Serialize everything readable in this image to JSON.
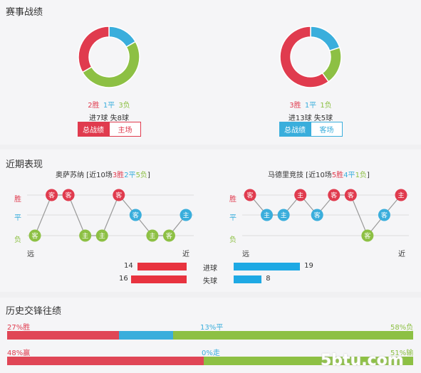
{
  "sections": {
    "record_title": "赛事战绩",
    "recent_title": "近期表现",
    "history_title": "历史交锋往绩"
  },
  "colors": {
    "win": "#e03b4e",
    "draw": "#3aaedc",
    "loss": "#8dc044"
  },
  "left_team": {
    "record": {
      "win": "2胜",
      "draw": "1平",
      "loss": "3负",
      "wins": 2,
      "draws": 1,
      "losses": 3
    },
    "goals": "进7球 失8球",
    "tabs": [
      "总战绩",
      "主场"
    ],
    "active_tab": 0
  },
  "right_team": {
    "record": {
      "win": "3胜",
      "draw": "1平",
      "loss": "1负",
      "wins": 3,
      "draws": 1,
      "losses": 1
    },
    "goals": "进13球 失5球",
    "tabs": [
      "总战绩",
      "客场"
    ],
    "active_tab": 0
  },
  "form_left": {
    "name": "奥萨苏纳",
    "prefix": " [近10场",
    "w": "3胜",
    "d": "2平",
    "l": "5负",
    "suffix": "]",
    "results": [
      "L",
      "W",
      "W",
      "L",
      "L",
      "W",
      "D",
      "L",
      "L",
      "D"
    ],
    "venues": [
      "客",
      "客",
      "客",
      "主",
      "主",
      "客",
      "客",
      "主",
      "客",
      "主"
    ],
    "from": "远",
    "to": "近"
  },
  "form_right": {
    "name": "马德里竞技",
    "prefix": " [近10场",
    "w": "5胜",
    "d": "4平",
    "l": "1负",
    "suffix": "]",
    "results": [
      "W",
      "D",
      "D",
      "W",
      "D",
      "W",
      "W",
      "L",
      "D",
      "W"
    ],
    "venues": [
      "客",
      "主",
      "主",
      "主",
      "客",
      "客",
      "客",
      "客",
      "客",
      "主"
    ],
    "from": "远",
    "to": "近"
  },
  "axis": {
    "win": "胜",
    "draw": "平",
    "loss": "负"
  },
  "summary": {
    "scored_label": "进球",
    "conceded_label": "失球",
    "left_scored": 14,
    "left_conceded": 16,
    "right_scored": 19,
    "right_conceded": 8
  },
  "history": {
    "row1": {
      "left": "27%胜",
      "mid": "13%平",
      "right": "58%负",
      "a": 27,
      "b": 13,
      "c": 58
    },
    "row2": {
      "left": "48%赢",
      "mid": "0%走",
      "right": "51%输",
      "a": 48,
      "b": 0,
      "c": 51
    }
  },
  "watermark": "5btu.com"
}
